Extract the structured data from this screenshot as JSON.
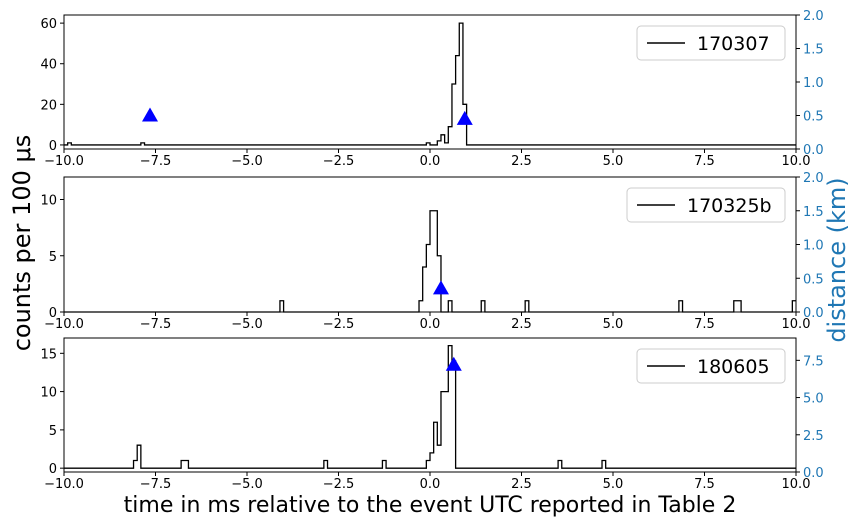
{
  "figure": {
    "xlabel": "time in ms relative to the event UTC reported in Table 2",
    "ylabel_left": "counts per 100 μs",
    "ylabel_right": "distance (km)",
    "right_axis_color": "#1f77b4",
    "hist_color": "#000000",
    "marker_color": "#0000ff"
  },
  "chart_data": [
    {
      "type": "line",
      "series": [
        {
          "name": "170307",
          "step_x_start": -10.0,
          "step_width": 0.1,
          "bins": [
            [
              -9.9,
              1
            ],
            [
              -7.9,
              1
            ],
            [
              -0.1,
              1
            ],
            [
              0.2,
              2
            ],
            [
              0.3,
              5
            ],
            [
              0.4,
              1
            ],
            [
              0.5,
              9
            ],
            [
              0.6,
              30
            ],
            [
              0.7,
              44
            ],
            [
              0.8,
              60
            ],
            [
              0.9,
              20
            ]
          ]
        },
        {
          "name": "distance",
          "type": "scatter",
          "marker": "triangle",
          "x": [
            -7.65,
            0.95
          ],
          "y": [
            0.5,
            0.45
          ]
        }
      ],
      "xlim": [
        -10.0,
        10.0
      ],
      "ylim_left": [
        -2,
        64
      ],
      "ylim_right": [
        0.0,
        2.0
      ],
      "xticks": [
        "−10.0",
        "−7.5",
        "−5.0",
        "−2.5",
        "0.0",
        "2.5",
        "5.0",
        "7.5",
        "10.0"
      ],
      "yticks_left": [
        "0",
        "20",
        "40",
        "60"
      ],
      "yticks_right": [
        "0.0",
        "0.5",
        "1.0",
        "1.5",
        "2.0"
      ],
      "legend": "top-right"
    },
    {
      "type": "line",
      "series": [
        {
          "name": "170325b",
          "step_x_start": -10.0,
          "step_width": 0.1,
          "bins": [
            [
              -4.1,
              1
            ],
            [
              -0.3,
              1
            ],
            [
              -0.2,
              4
            ],
            [
              -0.1,
              6
            ],
            [
              0.0,
              9
            ],
            [
              0.1,
              9
            ],
            [
              0.2,
              5
            ],
            [
              0.5,
              1
            ],
            [
              1.4,
              1
            ],
            [
              2.6,
              1
            ],
            [
              6.8,
              1
            ],
            [
              8.3,
              1
            ],
            [
              8.4,
              1
            ],
            [
              9.9,
              1
            ]
          ]
        },
        {
          "name": "distance",
          "type": "scatter",
          "marker": "triangle",
          "x": [
            0.3
          ],
          "y": [
            0.35
          ]
        }
      ],
      "xlim": [
        -10.0,
        10.0
      ],
      "ylim_left": [
        0,
        12
      ],
      "ylim_right": [
        0.0,
        2.0
      ],
      "xticks": [
        "−10.0",
        "−7.5",
        "−5.0",
        "−2.5",
        "0.0",
        "2.5",
        "5.0",
        "7.5",
        "10.0"
      ],
      "yticks_left": [
        "0",
        "5",
        "10"
      ],
      "yticks_right": [
        "0.0",
        "0.5",
        "1.0",
        "1.5",
        "2.0"
      ],
      "legend": "top-right"
    },
    {
      "type": "line",
      "series": [
        {
          "name": "180605",
          "step_x_start": -10.0,
          "step_width": 0.1,
          "bins": [
            [
              -8.1,
              1
            ],
            [
              -8.0,
              3
            ],
            [
              -6.8,
              1
            ],
            [
              -6.7,
              1
            ],
            [
              -2.9,
              1
            ],
            [
              -1.3,
              1
            ],
            [
              -0.1,
              1
            ],
            [
              0.0,
              2
            ],
            [
              0.1,
              6
            ],
            [
              0.2,
              3
            ],
            [
              0.3,
              10
            ],
            [
              0.4,
              10
            ],
            [
              0.5,
              16
            ],
            [
              0.6,
              14
            ],
            [
              3.5,
              1
            ],
            [
              4.7,
              1
            ]
          ]
        },
        {
          "name": "distance",
          "type": "scatter",
          "marker": "triangle",
          "x": [
            0.65
          ],
          "y": [
            7.2
          ]
        }
      ],
      "xlim": [
        -10.0,
        10.0
      ],
      "ylim_left": [
        -0.5,
        17
      ],
      "ylim_right": [
        0.0,
        9.0
      ],
      "xticks": [
        "−10.0",
        "−7.5",
        "−5.0",
        "−2.5",
        "0.0",
        "2.5",
        "5.0",
        "7.5",
        "10.0"
      ],
      "yticks_left": [
        "0",
        "5",
        "10",
        "15"
      ],
      "yticks_right": [
        "0.0",
        "2.5",
        "5.0",
        "7.5"
      ],
      "legend": "top-right"
    }
  ]
}
